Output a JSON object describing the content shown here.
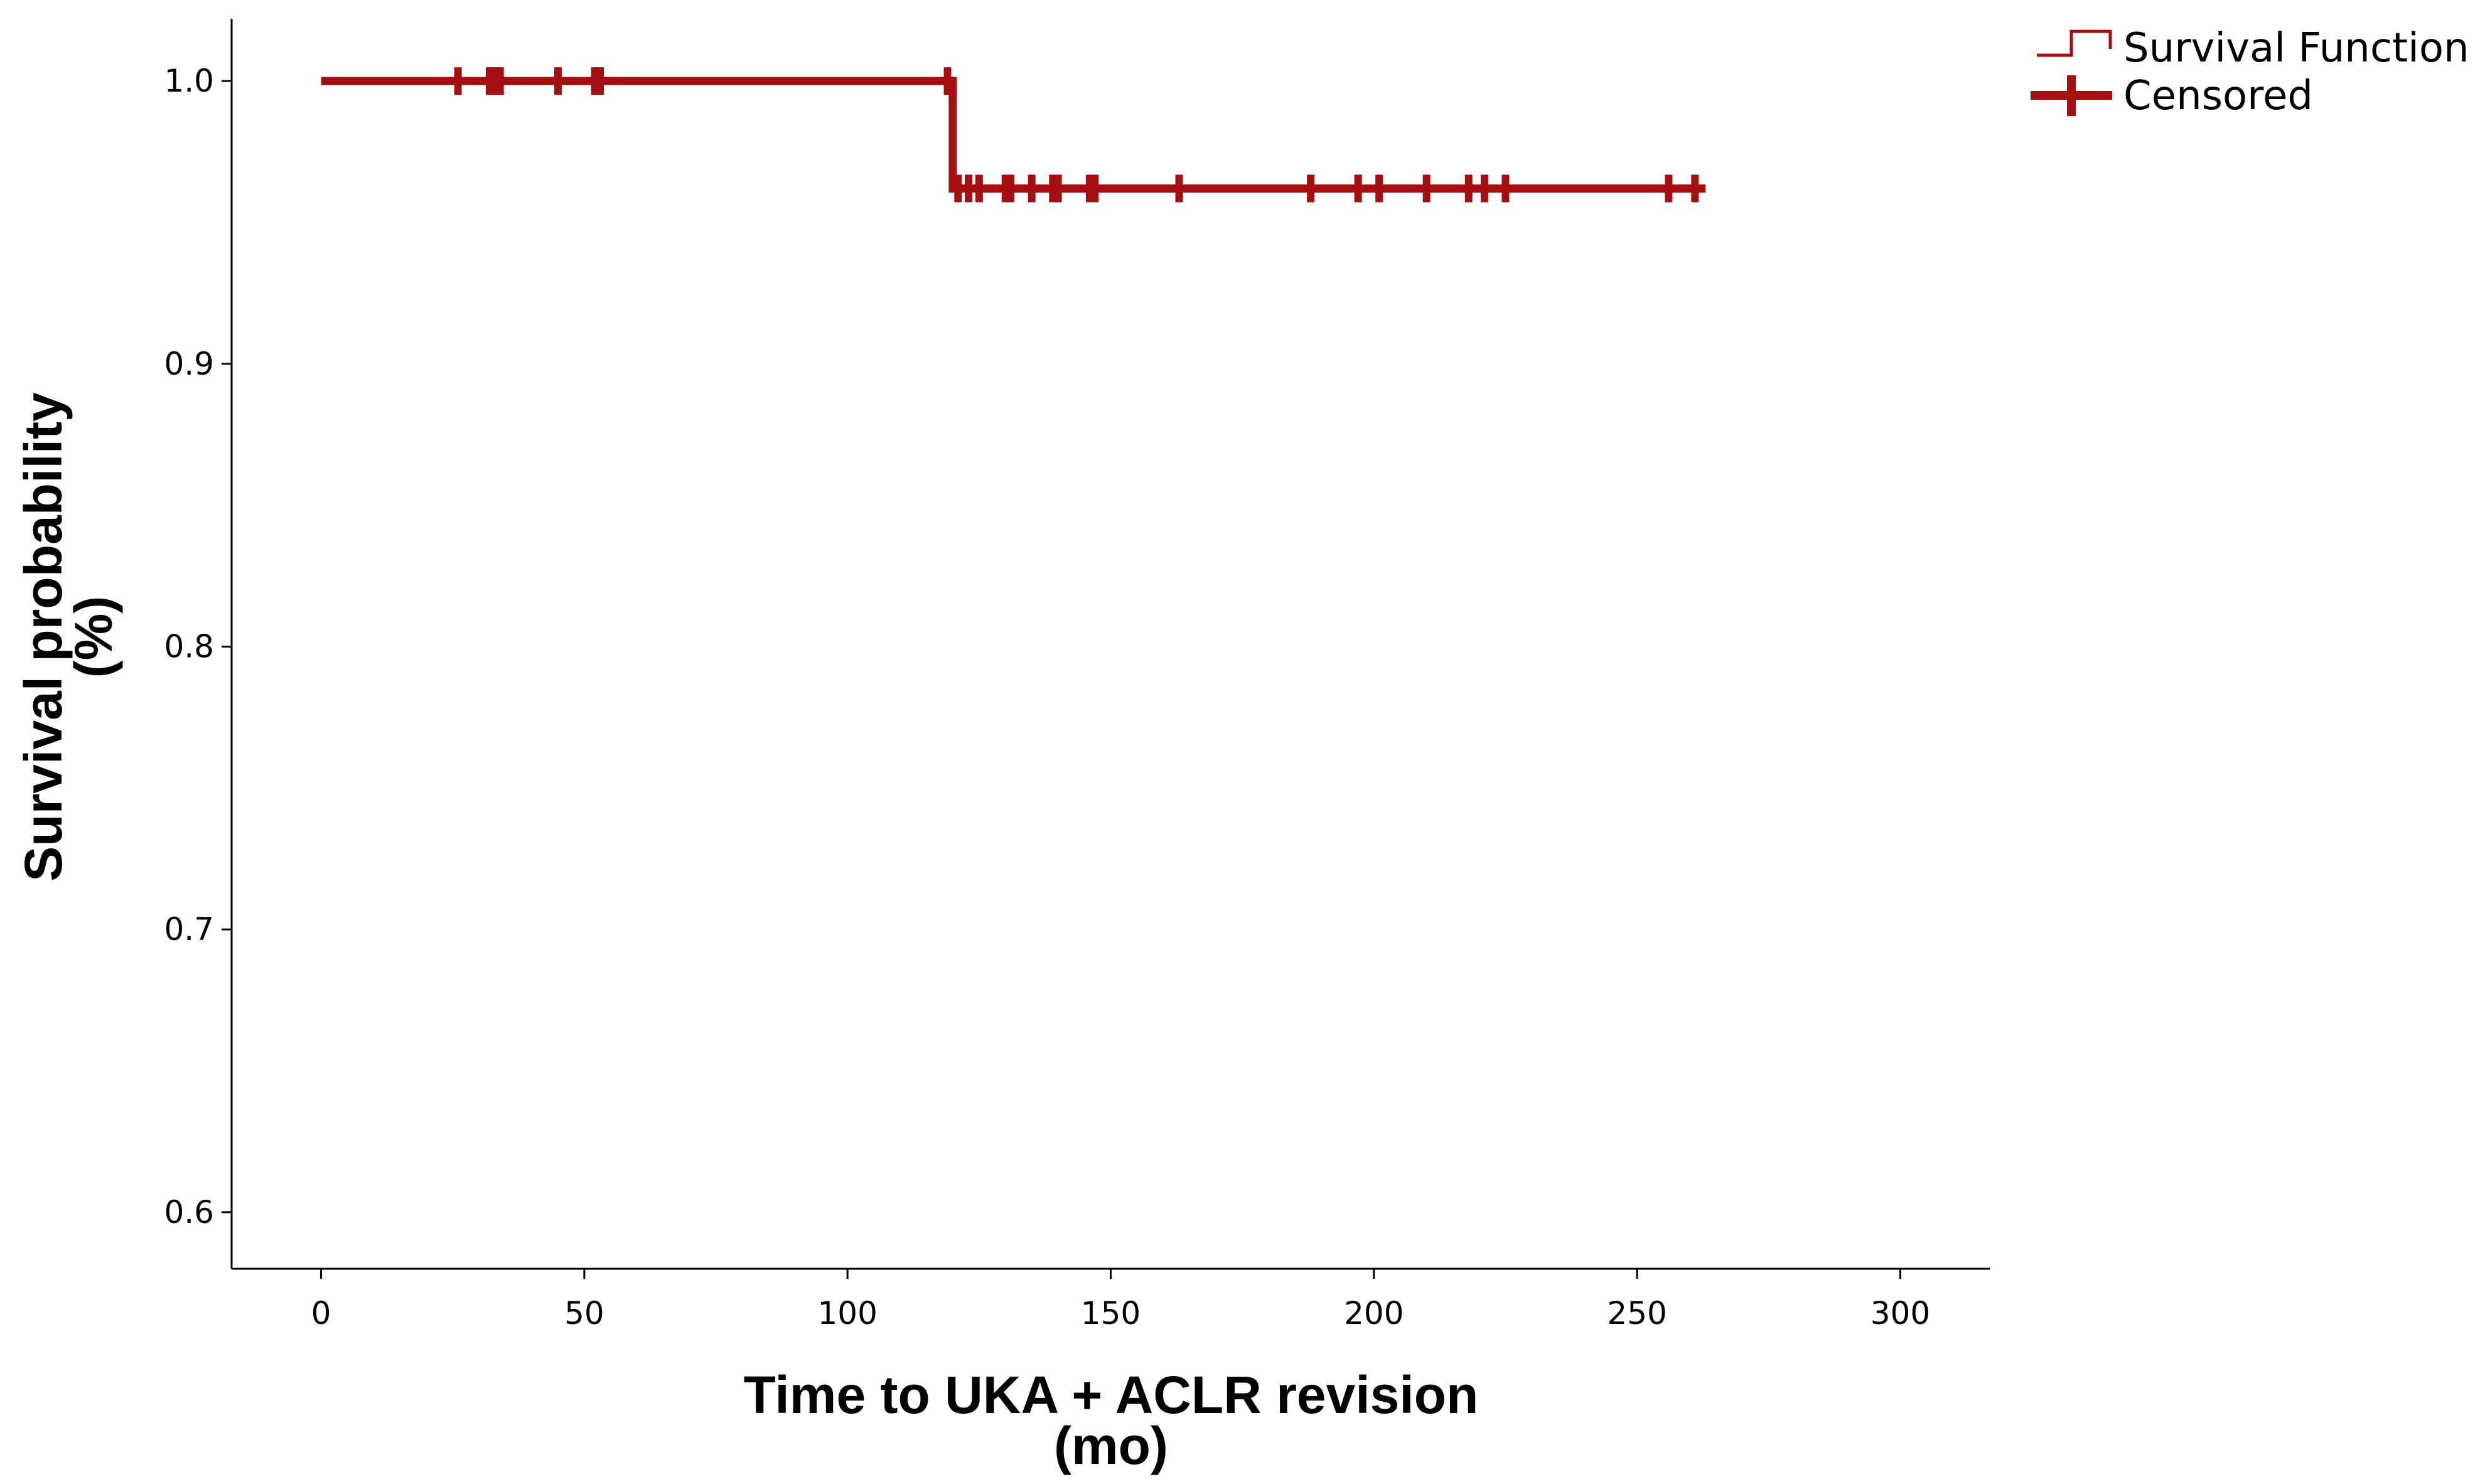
{
  "chart_data": {
    "type": "line",
    "title": "",
    "xlabel": "Time to UKA + ACLR revision",
    "xlabel_unit": "(mo)",
    "ylabel": "Survival probability",
    "ylabel_unit": "(%)",
    "xlim": [
      -17,
      317
    ],
    "ylim": [
      0.58,
      1.022
    ],
    "x_ticks": [
      0,
      50,
      100,
      150,
      200,
      250,
      300
    ],
    "x_tick_labels": [
      "0",
      "50",
      "100",
      "150",
      "200",
      "250",
      "300"
    ],
    "y_ticks": [
      0.6,
      0.7,
      0.8,
      0.9,
      1.0
    ],
    "y_tick_labels": [
      "0.6",
      "0.7",
      "0.8",
      "0.9",
      "1.0"
    ],
    "grid": false,
    "legend_position": "top-right",
    "color": "#a50f0f",
    "series": [
      {
        "name": "Survival Function",
        "kind": "step",
        "x": [
          0,
          120,
          120,
          263
        ],
        "y": [
          1.0,
          1.0,
          0.962,
          0.962
        ]
      },
      {
        "name": "Censored",
        "kind": "censor-marks",
        "points": [
          {
            "x": 26,
            "y": 1.0
          },
          {
            "x": 32,
            "y": 1.0
          },
          {
            "x": 33,
            "y": 1.0
          },
          {
            "x": 34,
            "y": 1.0
          },
          {
            "x": 45,
            "y": 1.0
          },
          {
            "x": 52,
            "y": 1.0
          },
          {
            "x": 53,
            "y": 1.0
          },
          {
            "x": 119,
            "y": 1.0
          },
          {
            "x": 121,
            "y": 0.962
          },
          {
            "x": 123,
            "y": 0.962
          },
          {
            "x": 125,
            "y": 0.962
          },
          {
            "x": 130,
            "y": 0.962
          },
          {
            "x": 131,
            "y": 0.962
          },
          {
            "x": 135,
            "y": 0.962
          },
          {
            "x": 139,
            "y": 0.962
          },
          {
            "x": 140,
            "y": 0.962
          },
          {
            "x": 146,
            "y": 0.962
          },
          {
            "x": 147,
            "y": 0.962
          },
          {
            "x": 163,
            "y": 0.962
          },
          {
            "x": 188,
            "y": 0.962
          },
          {
            "x": 197,
            "y": 0.962
          },
          {
            "x": 201,
            "y": 0.962
          },
          {
            "x": 210,
            "y": 0.962
          },
          {
            "x": 218,
            "y": 0.962
          },
          {
            "x": 221,
            "y": 0.962
          },
          {
            "x": 225,
            "y": 0.962
          },
          {
            "x": 256,
            "y": 0.962
          },
          {
            "x": 261,
            "y": 0.962
          }
        ]
      }
    ],
    "legend": [
      {
        "label": "Survival Function",
        "icon": "step-line-icon"
      },
      {
        "label": "Censored",
        "icon": "censor-plus-icon"
      }
    ]
  }
}
